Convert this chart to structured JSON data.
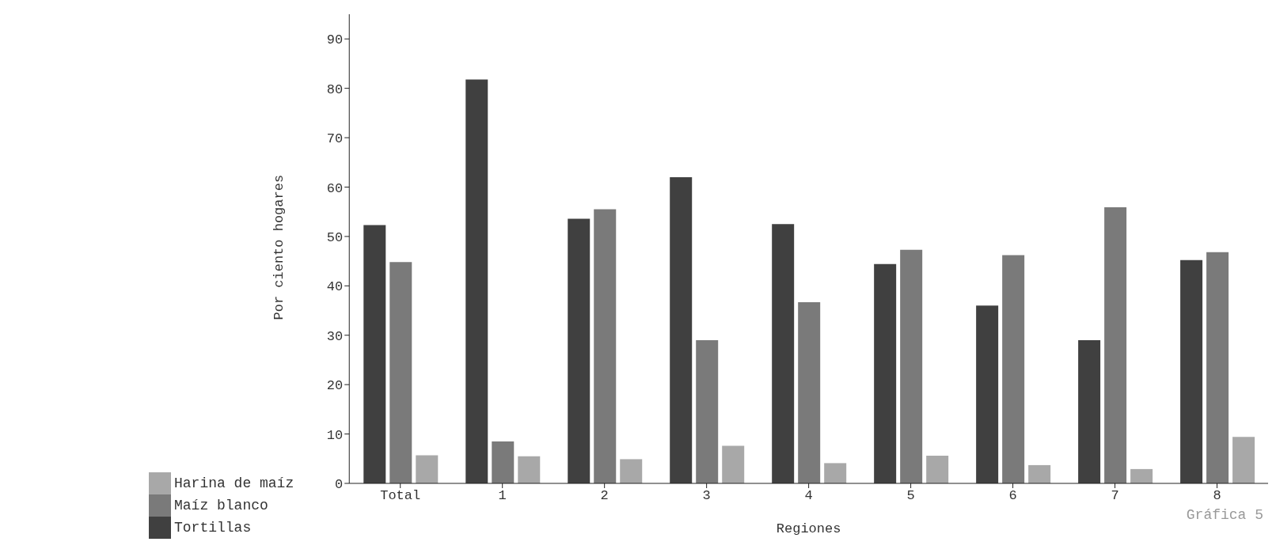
{
  "chart_data": {
    "type": "bar",
    "xlabel": "Regiones",
    "ylabel": "Por ciento hogares",
    "categories": [
      "Total",
      "1",
      "2",
      "3",
      "4",
      "5",
      "6",
      "7",
      "8"
    ],
    "series": [
      {
        "name": "Tortillas",
        "color": "#404040",
        "values": [
          52.3,
          81.8,
          53.6,
          62.0,
          52.5,
          44.4,
          36.0,
          29.0,
          45.2
        ]
      },
      {
        "name": "Maíz blanco",
        "color": "#7a7a7a",
        "values": [
          44.8,
          8.5,
          55.5,
          29.0,
          36.7,
          47.3,
          46.2,
          55.9,
          46.8
        ]
      },
      {
        "name": "Harina de maíz",
        "color": "#a8a8a8",
        "values": [
          5.7,
          5.5,
          4.9,
          7.6,
          4.1,
          5.6,
          3.7,
          2.9,
          9.4
        ]
      }
    ],
    "ylim": [
      0,
      95
    ],
    "yticks": [
      0,
      10,
      20,
      30,
      40,
      50,
      60,
      70,
      80,
      90
    ],
    "grid": false,
    "legend": "bottom left",
    "annotations": [
      "Gráfica 5"
    ]
  }
}
